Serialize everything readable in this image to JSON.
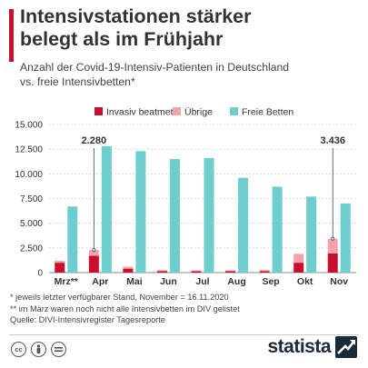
{
  "header": {
    "title_line1": "Intensivstationen stärker",
    "title_line2": "belegt als im Frühjahr",
    "subtitle_line1": "Anzahl der Covid-19-Intensiv-Patienten in Deutschland",
    "subtitle_line2": "vs. freie Intensivbetten*"
  },
  "colors": {
    "accent": "#c8102e",
    "invasiv": "#c8102e",
    "uebrige": "#f4a3ad",
    "frei": "#6ecdcd",
    "brand": "#1b2a3a"
  },
  "chart_data": {
    "type": "bar",
    "categories": [
      "Mrz**",
      "Apr",
      "Mai",
      "Jun",
      "Jul",
      "Aug",
      "Sep",
      "Okt",
      "Nov"
    ],
    "series": [
      {
        "name": "Invasiv beatmet",
        "values": [
          1000,
          1700,
          400,
          150,
          150,
          150,
          150,
          1000,
          1950
        ]
      },
      {
        "name": "Übrige",
        "values": [
          200,
          580,
          200,
          100,
          80,
          80,
          120,
          900,
          1486
        ]
      },
      {
        "name": "Freie Betten",
        "values": [
          6700,
          12800,
          12300,
          11500,
          11600,
          9600,
          8700,
          7700,
          7000
        ]
      }
    ],
    "stacked_series": [
      "Invasiv beatmet",
      "Übrige"
    ],
    "y_ticks": [
      "0",
      "2.500",
      "5.000",
      "7.500",
      "10.000",
      "12.500",
      "15.000"
    ],
    "ylim": [
      0,
      15000
    ],
    "annotations": [
      {
        "category": "Apr",
        "text": "2.280"
      },
      {
        "category": "Nov",
        "text": "3.436"
      }
    ],
    "legend_position": "top",
    "grid": true
  },
  "notes": {
    "line1": "*   jeweils letzter verfügbarer Stand, November = 16.11.2020",
    "line2": "** im März waren noch nicht alle Intensivbetten im DIV gelistet",
    "line3": "Quelle: DIVI-Intensivregister Tagesreporte"
  },
  "footer": {
    "brand": "statista",
    "icons": [
      "cc-icon",
      "by-icon",
      "equals-icon"
    ]
  }
}
